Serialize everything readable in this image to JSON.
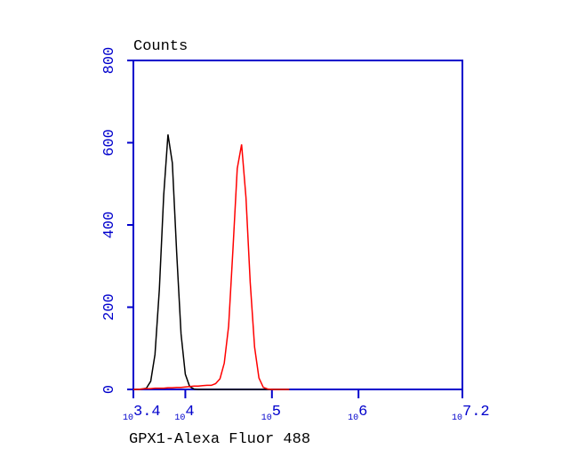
{
  "chart_data": {
    "type": "line",
    "title": "Counts",
    "x_label": "GPX1-Alexa Fluor 488",
    "log_scale_x": true,
    "x": [
      3.4,
      3.45,
      3.5,
      3.55,
      3.6,
      3.65,
      3.7,
      3.75,
      3.8,
      3.85,
      3.9,
      3.95,
      4.0,
      4.05,
      4.1,
      4.15,
      4.2,
      4.25,
      4.3,
      4.35,
      4.4,
      4.45,
      4.5,
      4.55,
      4.6,
      4.65,
      4.7,
      4.75,
      4.8,
      4.85,
      4.9,
      4.95,
      5.0,
      5.05,
      5.1,
      5.15,
      5.2
    ],
    "series": [
      {
        "color": "#000000",
        "values": [
          0,
          0,
          1,
          3,
          20,
          85,
          243,
          472,
          620,
          551,
          332,
          135,
          37,
          7,
          1,
          0,
          0,
          0,
          0,
          0,
          0,
          0,
          0,
          0,
          0,
          0,
          0,
          0,
          0,
          0,
          0,
          0,
          0,
          0,
          0,
          0,
          0
        ]
      },
      {
        "color": "#ff0000",
        "values": [
          0,
          0,
          1,
          2,
          2,
          3,
          3,
          3,
          4,
          4,
          5,
          5,
          6,
          7,
          8,
          8,
          9,
          10,
          10,
          14,
          26,
          64,
          154,
          342,
          537,
          596,
          467,
          260,
          103,
          28,
          5,
          1,
          0,
          0,
          0,
          0,
          0
        ]
      }
    ],
    "xlim": [
      3.4,
      7.2
    ],
    "xticks": [
      {
        "value": 3.4,
        "label": [
          "10",
          "3.4"
        ]
      },
      {
        "value": 4,
        "label": [
          "10",
          "4"
        ]
      },
      {
        "value": 5,
        "label": [
          "10",
          "5"
        ]
      },
      {
        "value": 6,
        "label": [
          "10",
          "6"
        ]
      },
      {
        "value": 7.2,
        "label": [
          "10",
          "7.2"
        ]
      }
    ],
    "ylim": [
      0,
      800
    ],
    "yticks": [
      0,
      200,
      400,
      600,
      800
    ],
    "axis_color": "#0000cc"
  }
}
